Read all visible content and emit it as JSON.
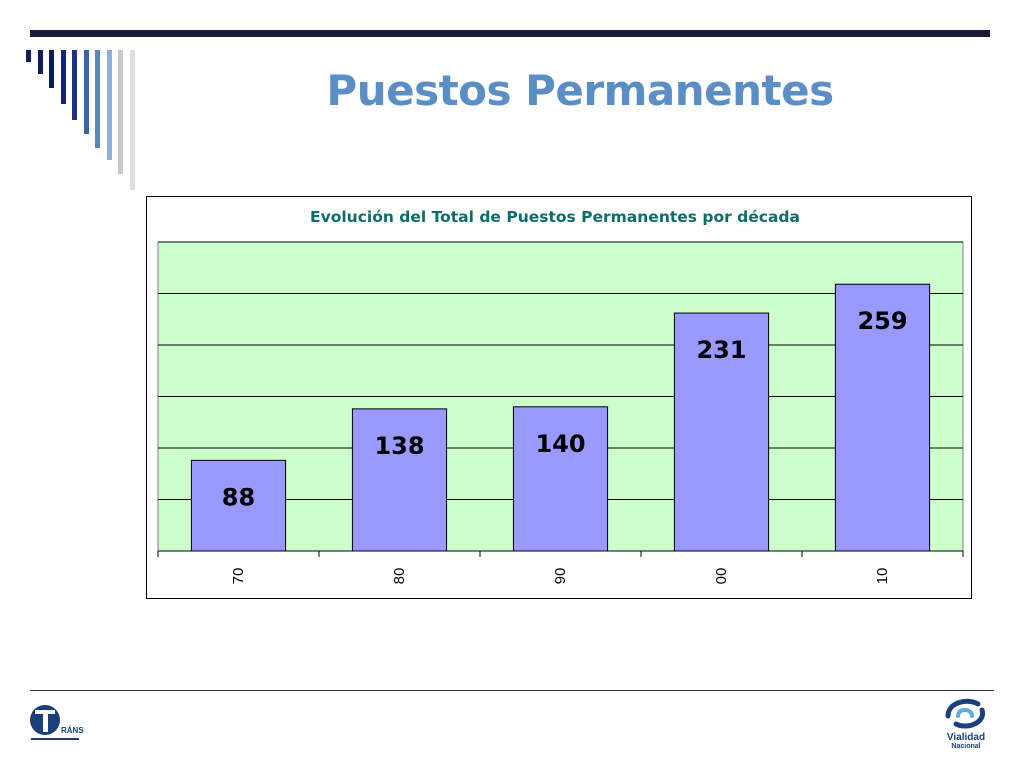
{
  "slide": {
    "title": "Puestos Permanentes"
  },
  "colors": {
    "title": "#5b8ec6",
    "top_rule": "#1b1a3a",
    "plot_background": "#ccffcc",
    "bar_fill": "#9999ff",
    "bar_stroke": "#000000",
    "chart_title": "#0b6e69",
    "stripes": [
      "#0f1c5c",
      "#0f1c5c",
      "#0f1c5c",
      "#16256e",
      "#1d3382",
      "#3f63a8",
      "#5b86c2",
      "#8fb0da",
      "#c8c8c8",
      "#dedede"
    ]
  },
  "chart_data": {
    "type": "bar",
    "title": "Evolución del Total de Puestos Permanentes por década",
    "categories": [
      "70",
      "80",
      "90",
      "00",
      "10"
    ],
    "values": [
      88,
      138,
      140,
      231,
      259
    ],
    "data_labels": [
      "88",
      "138",
      "140",
      "231",
      "259"
    ],
    "xlabel": "",
    "ylabel": "",
    "ylim": [
      0,
      300
    ],
    "y_gridline_step": 50,
    "y_tick_labels_shown": false,
    "x_tick_label_rotation": "vertical",
    "grid": true,
    "legend": "none"
  },
  "footer": {
    "left_logo_icon": "transito-logo-icon",
    "left_logo_text": "RÁNSITO",
    "right_logo_icon": "vialidad-nacional-logo-icon",
    "right_logo_line1": "Vialidad",
    "right_logo_line2": "Nacional"
  }
}
